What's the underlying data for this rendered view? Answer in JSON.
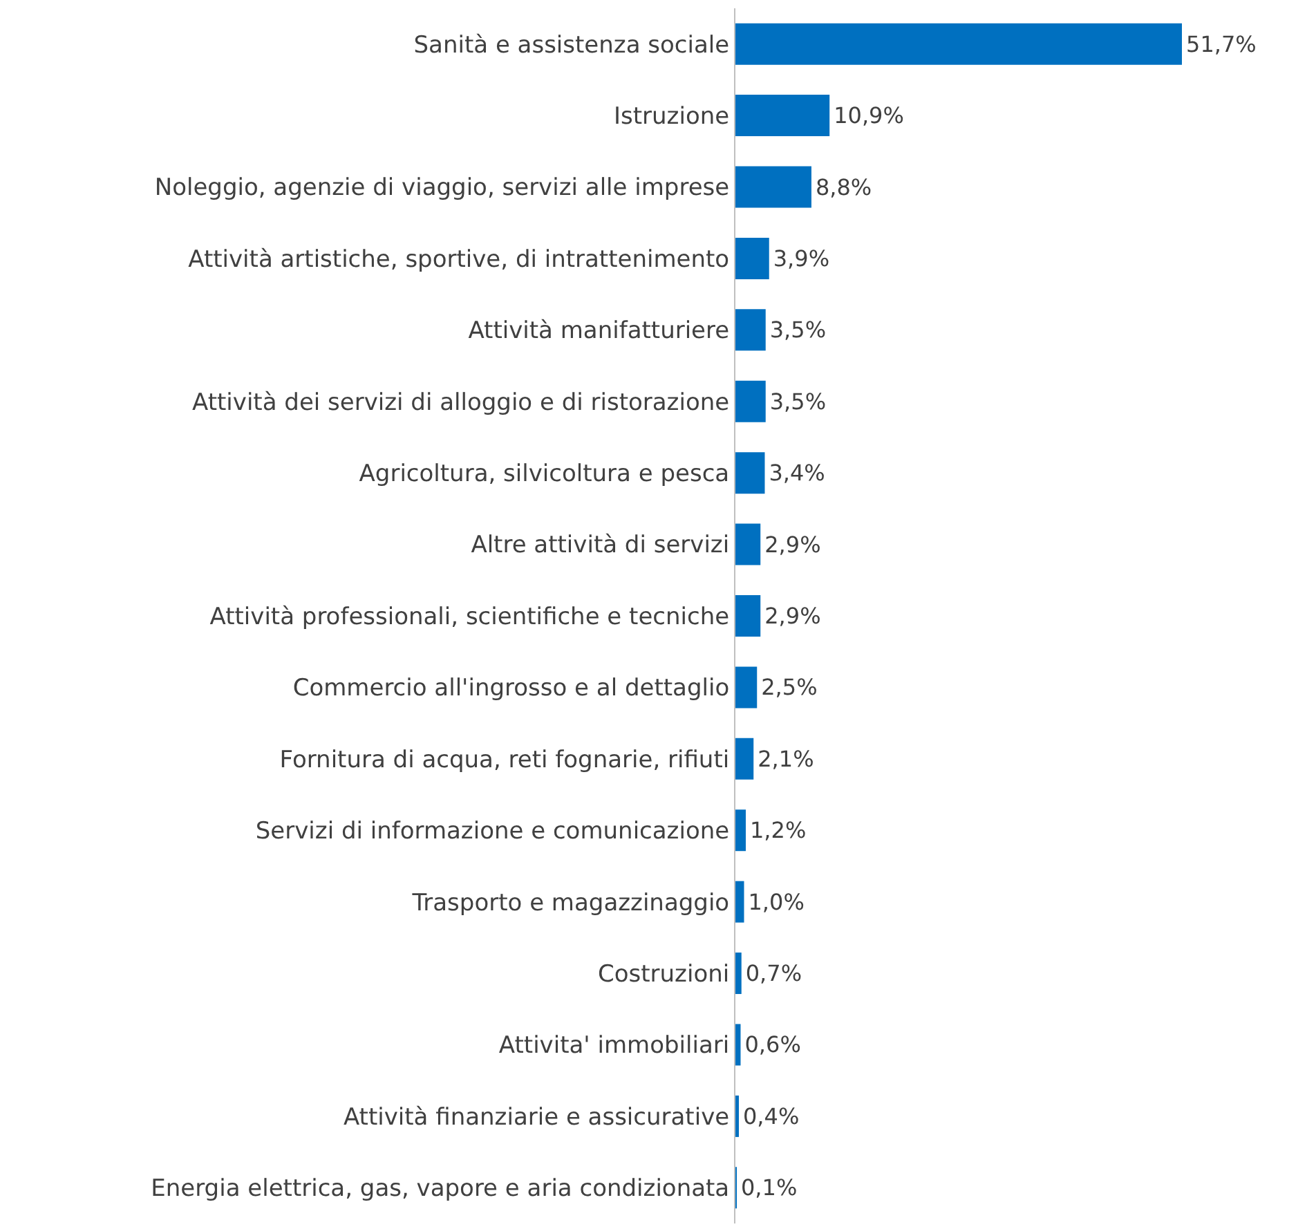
{
  "chart_data": {
    "type": "bar",
    "orientation": "horizontal",
    "categories": [
      "Sanità e assistenza sociale",
      "Istruzione",
      "Noleggio, agenzie di viaggio, servizi alle imprese",
      "Attività artistiche, sportive, di intrattenimento",
      "Attività manifatturiere",
      "Attività dei servizi di alloggio e di ristorazione",
      "Agricoltura, silvicoltura e pesca",
      "Altre attività di servizi",
      "Attività professionali, scientifiche e tecniche",
      "Commercio all'ingrosso e al dettaglio",
      "Fornitura di acqua, reti fognarie, rifiuti",
      "Servizi di informazione e comunicazione",
      "Trasporto e magazzinaggio",
      "Costruzioni",
      "Attivita' immobiliari",
      "Attività finanziarie e assicurative",
      "Energia elettrica, gas, vapore e aria condizionata"
    ],
    "values": [
      51.7,
      10.9,
      8.8,
      3.9,
      3.5,
      3.5,
      3.4,
      2.9,
      2.9,
      2.5,
      2.1,
      1.2,
      1.0,
      0.7,
      0.6,
      0.4,
      0.1
    ],
    "value_labels": [
      "51,7%",
      "10,9%",
      "8,8%",
      "3,9%",
      "3,5%",
      "3,5%",
      "3,4%",
      "2,9%",
      "2,9%",
      "2,5%",
      "2,1%",
      "1,2%",
      "1,0%",
      "0,7%",
      "0,6%",
      "0,4%",
      "0,1%"
    ],
    "color": "#0070c0",
    "tick_labels": "y"
  }
}
